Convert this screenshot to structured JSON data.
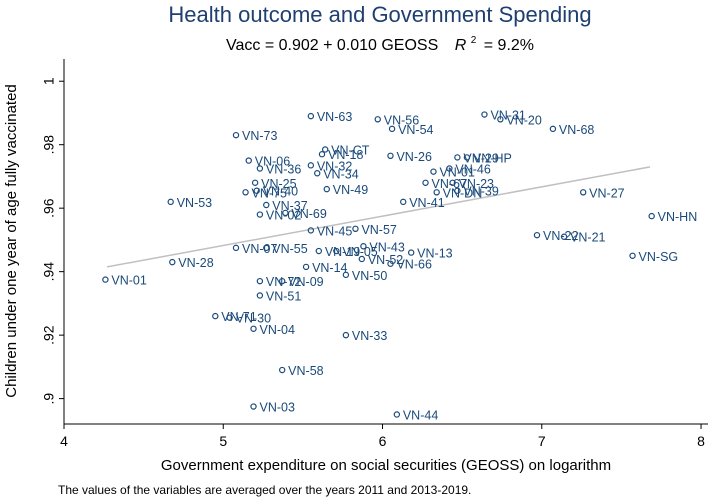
{
  "chart_data": {
    "type": "scatter",
    "title": "Health outcome and Government Spending",
    "subtitle": {
      "equation": "Vacc = 0.902 + 0.010 GEOSS",
      "r2_symbol": "R",
      "r2_exp": "2",
      "r2_value": "= 9.2%"
    },
    "xlabel": "Government expenditure on social securities (GEOSS) on logarithm",
    "ylabel": "Children under one year of age fully vaccinated",
    "note": "The values of the variables are averaged over the years 2011 and 2013-2019.",
    "xlim": [
      4,
      8.05
    ],
    "ylim": [
      0.892,
      1.007
    ],
    "xticks": [
      4,
      5,
      6,
      7,
      8
    ],
    "xtick_labels": [
      "4",
      "5",
      "6",
      "7",
      "8"
    ],
    "yticks": [
      0.9,
      0.92,
      0.94,
      0.96,
      0.98,
      1.0
    ],
    "ytick_labels": [
      ".9",
      ".92",
      ".94",
      ".96",
      ".98",
      "1"
    ],
    "fit_line": {
      "intercept_label": "0.902",
      "slope_label": "0.010",
      "x_start": 4.27,
      "x_end": 7.68,
      "y_start": 0.9415,
      "y_end": 0.973
    },
    "colors": {
      "points": "#1a4a7a",
      "fit": "#c0c0c0",
      "title": "#1f3f6f",
      "axis": "#000000"
    },
    "points": [
      {
        "label": "VN-01",
        "x": 4.26,
        "y": 0.9375
      },
      {
        "label": "VN-28",
        "x": 4.68,
        "y": 0.943
      },
      {
        "label": "VN-53",
        "x": 4.67,
        "y": 0.962
      },
      {
        "label": "VN-71",
        "x": 4.95,
        "y": 0.926
      },
      {
        "label": "VN-30",
        "x": 5.04,
        "y": 0.9255
      },
      {
        "label": "VN-73",
        "x": 5.08,
        "y": 0.983
      },
      {
        "label": "VN-07",
        "x": 5.08,
        "y": 0.9475
      },
      {
        "label": "VN-75",
        "x": 5.14,
        "y": 0.965
      },
      {
        "label": "VN-04",
        "x": 5.19,
        "y": 0.922
      },
      {
        "label": "VN-06",
        "x": 5.16,
        "y": 0.975
      },
      {
        "label": "VN-03",
        "x": 5.19,
        "y": 0.8975
      },
      {
        "label": "VN-25",
        "x": 5.2,
        "y": 0.968
      },
      {
        "label": "VN-02",
        "x": 5.23,
        "y": 0.958
      },
      {
        "label": "VN-40",
        "x": 5.21,
        "y": 0.9655
      },
      {
        "label": "VN-36",
        "x": 5.23,
        "y": 0.9725
      },
      {
        "label": "VN-37",
        "x": 5.27,
        "y": 0.961
      },
      {
        "label": "VN-72",
        "x": 5.23,
        "y": 0.937
      },
      {
        "label": "VN-51",
        "x": 5.23,
        "y": 0.9325
      },
      {
        "label": "VN-55",
        "x": 5.27,
        "y": 0.9475
      },
      {
        "label": "VN-09",
        "x": 5.37,
        "y": 0.937
      },
      {
        "label": "VN-58",
        "x": 5.37,
        "y": 0.909
      },
      {
        "label": "VN-69",
        "x": 5.39,
        "y": 0.9585
      },
      {
        "label": "VN-45",
        "x": 5.55,
        "y": 0.953
      },
      {
        "label": "VN-63",
        "x": 5.55,
        "y": 0.989
      },
      {
        "label": "VN-32",
        "x": 5.55,
        "y": 0.9735
      },
      {
        "label": "VN-18",
        "x": 5.62,
        "y": 0.977
      },
      {
        "label": "VN-CT",
        "x": 5.64,
        "y": 0.9785
      },
      {
        "label": "VN-34",
        "x": 5.59,
        "y": 0.971
      },
      {
        "label": "VN-49",
        "x": 5.65,
        "y": 0.966
      },
      {
        "label": "VN-19",
        "x": 5.6,
        "y": 0.9465
      },
      {
        "label": "VN-14",
        "x": 5.52,
        "y": 0.9415
      },
      {
        "label": "VN-05",
        "x": 5.71,
        "y": 0.9465
      },
      {
        "label": "VN-50",
        "x": 5.77,
        "y": 0.939
      },
      {
        "label": "VN-33",
        "x": 5.77,
        "y": 0.92
      },
      {
        "label": "VN-57",
        "x": 5.83,
        "y": 0.9535
      },
      {
        "label": "VN-43",
        "x": 5.88,
        "y": 0.948
      },
      {
        "label": "VN-52",
        "x": 5.87,
        "y": 0.944
      },
      {
        "label": "VN-56",
        "x": 5.97,
        "y": 0.988
      },
      {
        "label": "VN-54",
        "x": 6.06,
        "y": 0.985
      },
      {
        "label": "VN-26",
        "x": 6.05,
        "y": 0.9765
      },
      {
        "label": "VN-13",
        "x": 6.18,
        "y": 0.946
      },
      {
        "label": "VN-66",
        "x": 6.05,
        "y": 0.9425
      },
      {
        "label": "VN-41",
        "x": 6.13,
        "y": 0.962
      },
      {
        "label": "VN-44",
        "x": 6.09,
        "y": 0.895
      },
      {
        "label": "VN-67",
        "x": 6.27,
        "y": 0.968
      },
      {
        "label": "VN-01",
        "x": 6.32,
        "y": 0.9715
      },
      {
        "label": "VN-46",
        "x": 6.42,
        "y": 0.9725
      },
      {
        "label": "VN-DN",
        "x": 6.34,
        "y": 0.965
      },
      {
        "label": "VN-23",
        "x": 6.44,
        "y": 0.968
      },
      {
        "label": "VN-39",
        "x": 6.47,
        "y": 0.9655
      },
      {
        "label": "VN-HP",
        "x": 6.53,
        "y": 0.976
      },
      {
        "label": "VN-29",
        "x": 6.47,
        "y": 0.976
      },
      {
        "label": "VN-31",
        "x": 6.64,
        "y": 0.9895
      },
      {
        "label": "VN-20",
        "x": 6.74,
        "y": 0.988
      },
      {
        "label": "VN-68",
        "x": 7.07,
        "y": 0.985
      },
      {
        "label": "VN-27",
        "x": 7.26,
        "y": 0.965
      },
      {
        "label": "VN-22",
        "x": 6.97,
        "y": 0.9515
      },
      {
        "label": "VN-21",
        "x": 7.14,
        "y": 0.951
      },
      {
        "label": "VN-SG",
        "x": 7.57,
        "y": 0.945
      },
      {
        "label": "VN-HN",
        "x": 7.69,
        "y": 0.9575
      }
    ]
  }
}
